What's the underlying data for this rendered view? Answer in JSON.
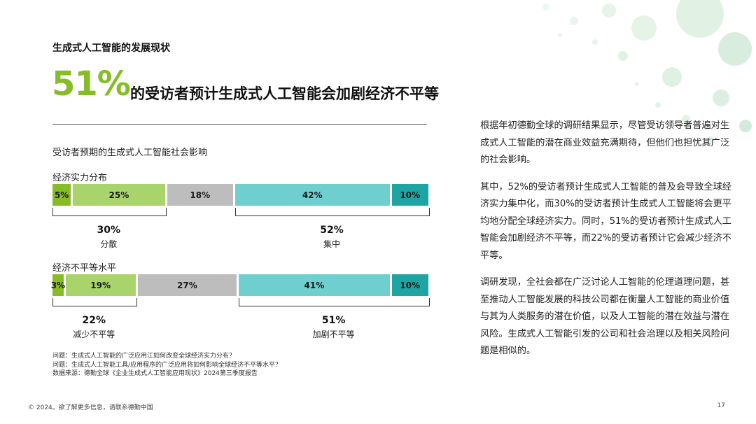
{
  "header": {
    "section_title": "生成式人工智能的发展现状",
    "big_percent": "51%",
    "headline": "的受访者预计生成式人工智能会加剧经济不平等"
  },
  "chart_title": "受访者预期的生成式人工智能社会影响",
  "chart_data": {
    "type": "bar",
    "orientation": "horizontal-stacked-100",
    "categories": [
      "经济实力分布",
      "经济不平等水平"
    ],
    "series": [
      {
        "values": [
          5,
          3
        ],
        "color": "#86bc25"
      },
      {
        "values": [
          25,
          19
        ],
        "color": "#a9d46b"
      },
      {
        "values": [
          18,
          27
        ],
        "color": "#bdbdbd"
      },
      {
        "values": [
          42,
          41
        ],
        "color": "#6fcfcf"
      },
      {
        "values": [
          10,
          10
        ],
        "color": "#1fa4a4"
      }
    ],
    "segment_labels": [
      [
        "5%",
        "25%",
        "18%",
        "42%",
        "10%"
      ],
      [
        "3%",
        "19%",
        "27%",
        "41%",
        "10%"
      ]
    ],
    "groups": [
      {
        "left": {
          "value": "30%",
          "label": "分散"
        },
        "right": {
          "value": "52%",
          "label": "集中"
        }
      },
      {
        "left": {
          "value": "22%",
          "label": "减少不平等"
        },
        "right": {
          "value": "51%",
          "label": "加剧不平等"
        }
      }
    ]
  },
  "notes": [
    "问题：生成式人工智能的广泛应用江如何改变全球经济实力分布？",
    "问题：生成式人工智能工具/应用程序的广泛应用将如何影响全球经济不平等水平？",
    "数据来源：德勤全球《企业生成式人工智能应用现状》2024第三季度报告"
  ],
  "body_paragraphs": [
    "根据年初德勤全球的调研结果显示，尽管受访领导者普遍对生成式人工智能的潜在商业效益充满期待，但他们也担忧其广泛的社会影响。",
    "其中，52%的受访者预计生成式人工智能的普及会导致全球经济实力集中化，而30%的受访者预计生成式人工智能将会更平均地分配全球经济实力。同时，51%的受访者预计生成式人工智能会加剧经济不平等，而22%的受访者预计它会减少经济不平等。",
    "调研发现，全社会都在广泛讨论人工智能的伦理道理问题，甚至推动人工智能发展的科技公司都在衡量人工智能的商业价值与其为人类服务的潜在价值，以及人工智能的潜在效益与潜在风险。生成式人工智能引发的公司和社会治理以及相关风险问题是相似的。"
  ],
  "footer": {
    "left": "© 2024。欲了解更多信息，请联系德勤中国",
    "page": "17"
  }
}
